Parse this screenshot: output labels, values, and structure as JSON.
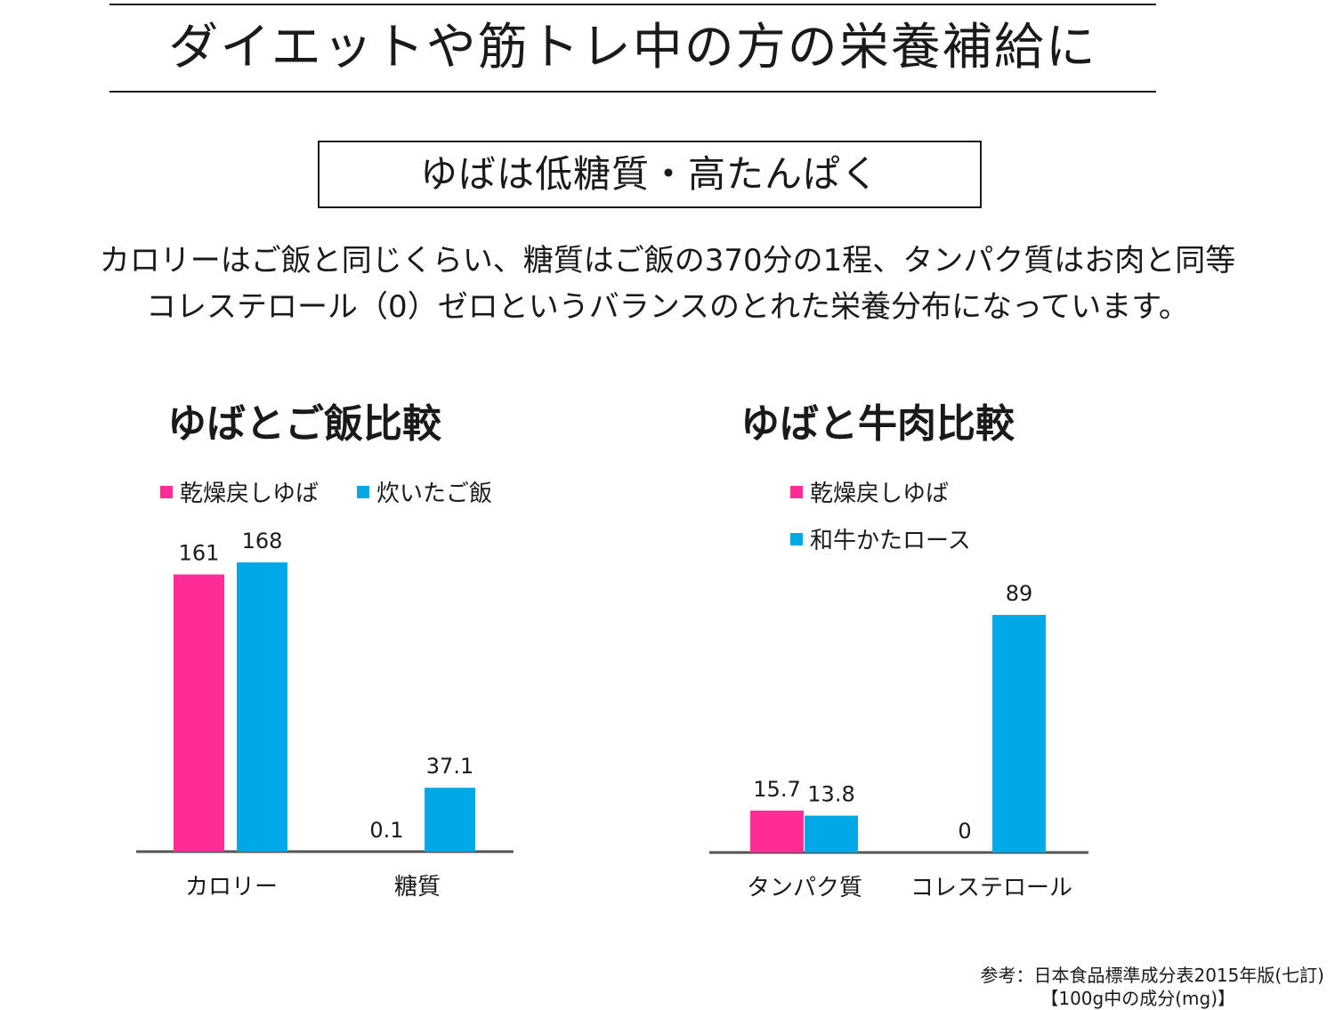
{
  "headline": "ダイエットや筋トレ中の方の栄養補給に",
  "subheadline": "ゆばは低糖質・高たんぱく",
  "description": [
    "カロリーはご飯と同じくらい、糖質はご飯の370分の1程、タンパク質はお肉と同等",
    "コレステロール（0）ゼロというバランスのとれた栄養分布になっています。"
  ],
  "colors": {
    "pink": "#ff2d95",
    "blue": "#00a8e8",
    "axis": "#555555",
    "text": "#1a1a1a"
  },
  "chart_data": [
    {
      "type": "bar",
      "title": "ゆばとご飯比較",
      "legend_position": "top",
      "categories": [
        "カロリー",
        "糖質"
      ],
      "series": [
        {
          "name": "乾燥戻しゆば",
          "color": "#ff2d95",
          "values": [
            161,
            0.1
          ],
          "labels": [
            "161",
            "0.1"
          ]
        },
        {
          "name": "炊いたご飯",
          "color": "#00a8e8",
          "values": [
            168,
            37.1
          ],
          "labels": [
            "168",
            "37.1"
          ]
        }
      ],
      "ylim": [
        0,
        168
      ],
      "grid": false
    },
    {
      "type": "bar",
      "title": "ゆばと牛肉比較",
      "legend_position": "top",
      "categories": [
        "タンパク質",
        "コレステロール"
      ],
      "series": [
        {
          "name": "乾燥戻しゆば",
          "color": "#ff2d95",
          "values": [
            15.7,
            0
          ],
          "labels": [
            "15.7",
            "0"
          ]
        },
        {
          "name": "和牛かたロース",
          "color": "#00a8e8",
          "values": [
            13.8,
            89
          ],
          "labels": [
            "13.8",
            "89"
          ]
        }
      ],
      "ylim": [
        0,
        89
      ],
      "grid": false
    }
  ],
  "source": [
    "参考：日本食品標準成分表2015年版(七訂)",
    "【100g中の成分(mg)】"
  ]
}
